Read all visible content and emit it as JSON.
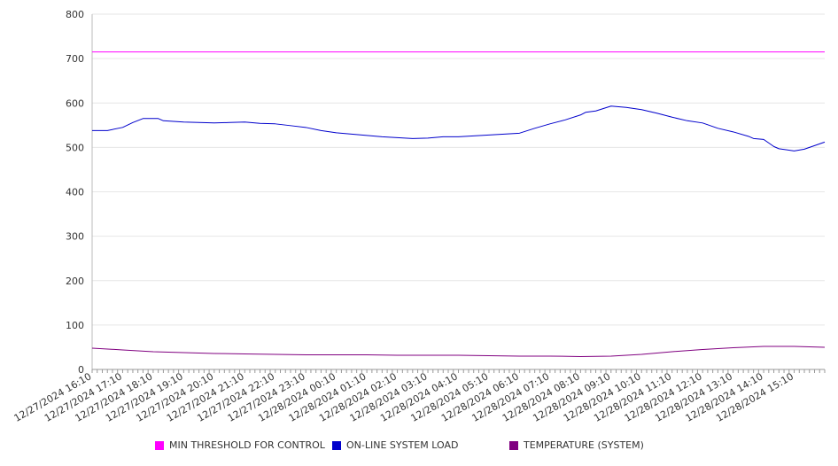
{
  "chart_data": {
    "type": "line",
    "ylim": [
      0,
      800
    ],
    "y_ticks": [
      0,
      100,
      200,
      300,
      400,
      500,
      600,
      700,
      800
    ],
    "x_range": [
      "12/27/2024 16:10",
      "12/28/2024 16:10"
    ],
    "x_tick_labels": [
      "12/27/2024 16:10",
      "12/27/2024 17:10",
      "12/27/2024 18:10",
      "12/27/2024 19:10",
      "12/27/2024 20:10",
      "12/27/2024 21:10",
      "12/27/2024 22:10",
      "12/27/2024 23:10",
      "12/28/2024 00:10",
      "12/28/2024 01:10",
      "12/28/2024 02:10",
      "12/28/2024 03:10",
      "12/28/2024 04:10",
      "12/28/2024 05:10",
      "12/28/2024 06:10",
      "12/28/2024 07:10",
      "12/28/2024 08:10",
      "12/28/2024 09:10",
      "12/28/2024 10:10",
      "12/28/2024 11:10",
      "12/28/2024 12:10",
      "12/28/2024 13:10",
      "12/28/2024 14:10",
      "12/28/2024 15:10"
    ],
    "grid": true,
    "legend_position": "bottom",
    "series": [
      {
        "name": "MIN THRESHOLD FOR CONTROL",
        "color": "#ff00ff",
        "x": [
          "12/27/2024 16:10",
          "12/28/2024 16:10"
        ],
        "y": [
          715,
          715
        ]
      },
      {
        "name": "ON-LINE SYSTEM LOAD",
        "color": "#0000cc",
        "x": [
          "12/27/2024 16:10",
          "12/27/2024 16:40",
          "12/27/2024 17:10",
          "12/27/2024 17:30",
          "12/27/2024 17:50",
          "12/27/2024 18:20",
          "12/27/2024 18:30",
          "12/27/2024 19:10",
          "12/27/2024 19:40",
          "12/27/2024 20:10",
          "12/27/2024 20:40",
          "12/27/2024 21:10",
          "12/27/2024 21:40",
          "12/27/2024 22:10",
          "12/27/2024 22:40",
          "12/27/2024 23:10",
          "12/27/2024 23:40",
          "12/28/2024 00:10",
          "12/28/2024 00:40",
          "12/28/2024 01:10",
          "12/28/2024 01:40",
          "12/28/2024 02:10",
          "12/28/2024 02:40",
          "12/28/2024 03:10",
          "12/28/2024 03:40",
          "12/28/2024 04:10",
          "12/28/2024 04:40",
          "12/28/2024 05:10",
          "12/28/2024 05:40",
          "12/28/2024 06:10",
          "12/28/2024 06:40",
          "12/28/2024 07:10",
          "12/28/2024 07:40",
          "12/28/2024 08:10",
          "12/28/2024 08:20",
          "12/28/2024 08:40",
          "12/28/2024 09:10",
          "12/28/2024 09:40",
          "12/28/2024 10:10",
          "12/28/2024 10:40",
          "12/28/2024 11:10",
          "12/28/2024 11:40",
          "12/28/2024 12:10",
          "12/28/2024 12:40",
          "12/28/2024 13:10",
          "12/28/2024 13:40",
          "12/28/2024 13:50",
          "12/28/2024 14:10",
          "12/28/2024 14:30",
          "12/28/2024 14:40",
          "12/28/2024 15:10",
          "12/28/2024 15:30",
          "12/28/2024 16:10"
        ],
        "y": [
          538,
          538,
          545,
          556,
          565,
          565,
          560,
          557,
          556,
          555,
          556,
          557,
          554,
          553,
          549,
          545,
          538,
          533,
          530,
          527,
          524,
          522,
          520,
          521,
          524,
          524,
          526,
          528,
          530,
          532,
          543,
          553,
          562,
          573,
          579,
          582,
          593,
          590,
          585,
          577,
          568,
          560,
          555,
          543,
          535,
          525,
          520,
          518,
          502,
          497,
          492,
          496,
          512
        ]
      },
      {
        "name": "TEMPERATURE (SYSTEM)",
        "color": "#800080",
        "x": [
          "12/27/2024 16:10",
          "12/27/2024 17:10",
          "12/27/2024 18:10",
          "12/27/2024 19:10",
          "12/27/2024 20:10",
          "12/27/2024 21:10",
          "12/27/2024 22:10",
          "12/27/2024 23:10",
          "12/28/2024 00:10",
          "12/28/2024 01:10",
          "12/28/2024 02:10",
          "12/28/2024 03:10",
          "12/28/2024 04:10",
          "12/28/2024 05:10",
          "12/28/2024 06:10",
          "12/28/2024 07:10",
          "12/28/2024 08:10",
          "12/28/2024 09:10",
          "12/28/2024 10:10",
          "12/28/2024 11:10",
          "12/28/2024 12:10",
          "12/28/2024 13:10",
          "12/28/2024 14:10",
          "12/28/2024 15:10",
          "12/28/2024 16:10"
        ],
        "y": [
          48,
          44,
          40,
          38,
          36,
          35,
          34,
          33,
          33,
          33,
          32,
          32,
          32,
          31,
          30,
          30,
          29,
          30,
          34,
          40,
          45,
          49,
          52,
          52,
          50
        ]
      }
    ]
  }
}
